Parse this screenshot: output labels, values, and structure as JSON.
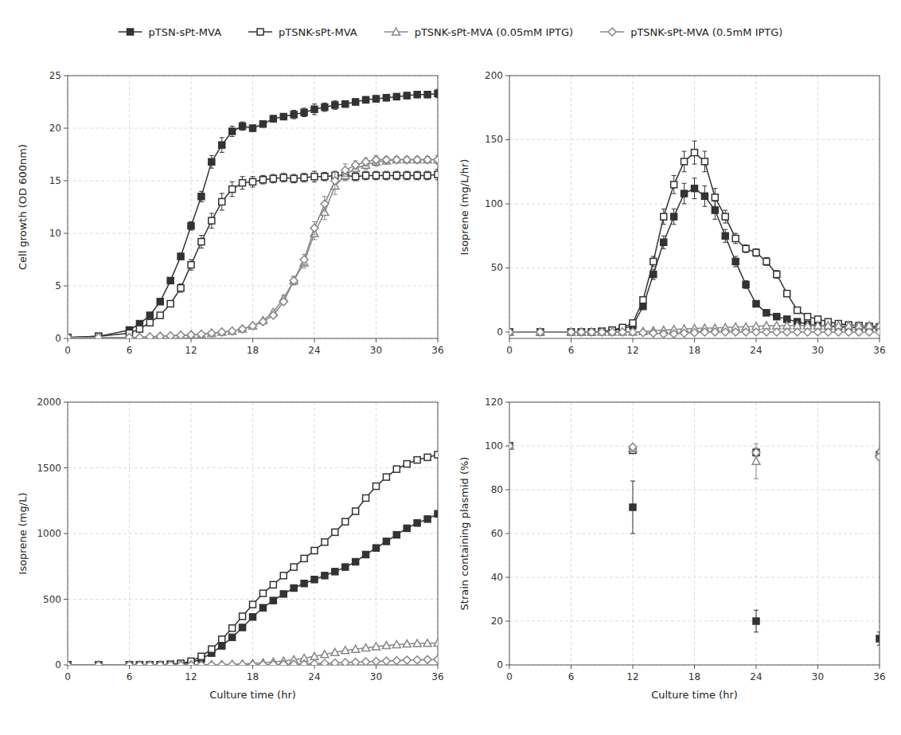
{
  "chart_data": [
    {
      "type": "line",
      "y_label": "Cell growth (OD 600nm)",
      "x": [
        0,
        3,
        6,
        7,
        8,
        9,
        10,
        11,
        12,
        13,
        14,
        15,
        16,
        17,
        18,
        19,
        20,
        21,
        22,
        23,
        24,
        25,
        26,
        27,
        28,
        29,
        30,
        31,
        32,
        33,
        34,
        35,
        36
      ],
      "xlim": [
        0,
        36
      ],
      "xticks": [
        0,
        6,
        12,
        18,
        24,
        30,
        36
      ],
      "ylim": [
        0,
        25
      ],
      "yticks": [
        0,
        5,
        10,
        15,
        20,
        25
      ],
      "grid": true,
      "legend": "top",
      "series": [
        {
          "name": "pTSN-sPt-MVA",
          "color": "#333333",
          "marker": "square",
          "values": [
            0.1,
            0.2,
            0.8,
            1.4,
            2.2,
            3.5,
            5.5,
            7.8,
            10.7,
            13.5,
            16.8,
            18.4,
            19.7,
            20.2,
            20.0,
            20.4,
            20.9,
            21.1,
            21.3,
            21.5,
            21.8,
            22.0,
            22.2,
            22.3,
            22.5,
            22.7,
            22.8,
            22.9,
            23.0,
            23.1,
            23.2,
            23.2,
            23.3
          ],
          "errors": [
            0.0,
            0.0,
            0.05,
            0.1,
            0.1,
            0.15,
            0.2,
            0.3,
            0.4,
            0.5,
            0.6,
            0.7,
            0.5,
            0.4,
            0.3,
            0.3,
            0.3,
            0.3,
            0.4,
            0.4,
            0.5,
            0.4,
            0.4,
            0.3,
            0.3,
            0.3,
            0.3,
            0.3,
            0.3,
            0.3,
            0.3,
            0.3,
            0.4
          ]
        },
        {
          "name": "pTSNK-sPt-MVA",
          "color": "#333333",
          "marker": "square-open",
          "values": [
            0.1,
            0.2,
            0.5,
            0.9,
            1.5,
            2.2,
            3.3,
            4.8,
            7.0,
            9.2,
            11.2,
            13.0,
            14.2,
            14.8,
            14.9,
            15.1,
            15.2,
            15.3,
            15.2,
            15.3,
            15.4,
            15.4,
            15.5,
            15.5,
            15.4,
            15.5,
            15.5,
            15.5,
            15.5,
            15.5,
            15.5,
            15.5,
            15.6
          ],
          "errors": [
            0.0,
            0.0,
            0.05,
            0.1,
            0.15,
            0.2,
            0.3,
            0.4,
            0.5,
            0.6,
            0.7,
            0.8,
            0.7,
            0.6,
            0.5,
            0.4,
            0.4,
            0.4,
            0.4,
            0.4,
            0.5,
            0.4,
            0.4,
            0.4,
            0.4,
            0.4,
            0.4,
            0.4,
            0.4,
            0.4,
            0.4,
            0.4,
            0.5
          ]
        },
        {
          "name": "pTSNK-sPt-MVA (0.05mM IPTG)",
          "color": "#888888",
          "marker": "triangle-open",
          "values": [
            0.1,
            0.1,
            0.1,
            0.1,
            0.15,
            0.2,
            0.25,
            0.3,
            0.35,
            0.4,
            0.5,
            0.6,
            0.7,
            0.9,
            1.2,
            1.7,
            2.5,
            3.8,
            5.5,
            7.2,
            10.0,
            12.0,
            14.5,
            15.5,
            16.2,
            16.5,
            16.8,
            16.9,
            17.0,
            17.0,
            17.0,
            17.0,
            17.0
          ],
          "errors": [
            0.0,
            0.0,
            0.0,
            0.0,
            0.0,
            0.0,
            0.0,
            0.0,
            0.0,
            0.0,
            0.0,
            0.0,
            0.0,
            0.0,
            0.1,
            0.1,
            0.2,
            0.3,
            0.4,
            0.5,
            0.6,
            0.7,
            0.8,
            0.5,
            0.4,
            0.4,
            0.4,
            0.3,
            0.3,
            0.3,
            0.3,
            0.3,
            0.4
          ]
        },
        {
          "name": "pTSNK-sPt-MVA (0.5mM IPTG)",
          "color": "#888888",
          "marker": "diamond-open",
          "values": [
            0.1,
            0.1,
            0.1,
            0.1,
            0.15,
            0.2,
            0.25,
            0.3,
            0.35,
            0.4,
            0.5,
            0.6,
            0.7,
            0.9,
            1.2,
            1.6,
            2.2,
            3.5,
            5.5,
            7.5,
            10.5,
            12.8,
            15.0,
            16.0,
            16.5,
            16.8,
            17.0,
            17.0,
            17.0,
            17.0,
            17.0,
            17.0,
            17.0
          ],
          "errors": [
            0.0,
            0.0,
            0.0,
            0.0,
            0.0,
            0.0,
            0.0,
            0.0,
            0.0,
            0.0,
            0.0,
            0.0,
            0.0,
            0.0,
            0.1,
            0.1,
            0.2,
            0.3,
            0.4,
            0.5,
            0.6,
            0.7,
            0.8,
            0.6,
            0.4,
            0.4,
            0.4,
            0.3,
            0.3,
            0.3,
            0.3,
            0.3,
            0.4
          ]
        }
      ]
    },
    {
      "type": "line",
      "y_label": "Isoprene (mg/L/hr)",
      "x": [
        0,
        3,
        6,
        7,
        8,
        9,
        10,
        11,
        12,
        13,
        14,
        15,
        16,
        17,
        18,
        19,
        20,
        21,
        22,
        23,
        24,
        25,
        26,
        27,
        28,
        29,
        30,
        31,
        32,
        33,
        34,
        35,
        36
      ],
      "xlim": [
        0,
        36
      ],
      "xticks": [
        0,
        6,
        12,
        18,
        24,
        30,
        36
      ],
      "ylim": [
        -5,
        200
      ],
      "yticks": [
        0,
        50,
        100,
        150,
        200
      ],
      "grid": true,
      "series": [
        {
          "color": "#333333",
          "marker": "square",
          "values": [
            0,
            0,
            0,
            0,
            0,
            0.5,
            1.0,
            2.5,
            5.0,
            20.0,
            45.0,
            70.0,
            90.0,
            108.0,
            112.0,
            106.0,
            95.0,
            75.0,
            55.0,
            37.0,
            22.0,
            15.0,
            12.0,
            10.0,
            8.0,
            6.0,
            5.0,
            4.5,
            4.0,
            3.5,
            3.5,
            3.0,
            3.0
          ],
          "errors": [
            0,
            0,
            0,
            0,
            0,
            0,
            0,
            0,
            0.5,
            2,
            4,
            5,
            6,
            8,
            8,
            8,
            7,
            5,
            4,
            3,
            2,
            1.5,
            1.5,
            1,
            1,
            1,
            1,
            1,
            1,
            1,
            1,
            1,
            1
          ]
        },
        {
          "color": "#333333",
          "marker": "square-open",
          "values": [
            0,
            0,
            0,
            0,
            0,
            0.5,
            1.5,
            3.5,
            7.0,
            25.0,
            55.0,
            90.0,
            115.0,
            133.0,
            140.0,
            133.0,
            105.0,
            90.0,
            73.0,
            65.0,
            62.0,
            55.0,
            45.0,
            30.0,
            17.0,
            12.0,
            10.0,
            8.0,
            6.5,
            5.5,
            5.0,
            4.5,
            4.0
          ],
          "errors": [
            0,
            0,
            0,
            0,
            0,
            0,
            0,
            0,
            0.5,
            2,
            4,
            6,
            7,
            8,
            9,
            8,
            7,
            5,
            4,
            3,
            3,
            3,
            3,
            2,
            2,
            1.5,
            1.5,
            1,
            1,
            1,
            1,
            1,
            1
          ]
        },
        {
          "color": "#888888",
          "marker": "triangle-open",
          "values": [
            0,
            0,
            0,
            0,
            0,
            0,
            0,
            0,
            0,
            0.5,
            1.0,
            1.5,
            2.0,
            2.5,
            2.8,
            3.0,
            3.0,
            3.5,
            4.0,
            4.0,
            4.5,
            5.0,
            5.0,
            5.0,
            5.0,
            5.0,
            5.0,
            5.0,
            5.0,
            5.0,
            5.0,
            5.0,
            5.0
          ],
          "errors": [
            0,
            0,
            0,
            0,
            0,
            0,
            0,
            0,
            0,
            0,
            0,
            0,
            0,
            0,
            0,
            0,
            0,
            0,
            0,
            0,
            0,
            0,
            0,
            0,
            0,
            0,
            0,
            0,
            0,
            0,
            0,
            0,
            0
          ]
        },
        {
          "color": "#888888",
          "marker": "diamond-open",
          "values": [
            0,
            0,
            0,
            0,
            0,
            0,
            0,
            0,
            0,
            -0.5,
            -1.0,
            -1.5,
            -1.5,
            -1.0,
            -0.5,
            0,
            0,
            0,
            0,
            0,
            0,
            0,
            0,
            0,
            0,
            0,
            0,
            0,
            0,
            0,
            0,
            0,
            0
          ],
          "errors": [
            0,
            0,
            0,
            0,
            0,
            0,
            0,
            0,
            0,
            0,
            0,
            0,
            0,
            0,
            0,
            0,
            0,
            0,
            0,
            0,
            0,
            0,
            0,
            0,
            0,
            0,
            0,
            0,
            0,
            0,
            0,
            0,
            0
          ]
        }
      ]
    },
    {
      "type": "line",
      "y_label": "Isoprene (mg/L)",
      "x_label": "Culture time (hr)",
      "x": [
        0,
        3,
        6,
        7,
        8,
        9,
        10,
        11,
        12,
        13,
        14,
        15,
        16,
        17,
        18,
        19,
        20,
        21,
        22,
        23,
        24,
        25,
        26,
        27,
        28,
        29,
        30,
        31,
        32,
        33,
        34,
        35,
        36
      ],
      "xlim": [
        0,
        36
      ],
      "xticks": [
        0,
        6,
        12,
        18,
        24,
        30,
        36
      ],
      "ylim": [
        0,
        2000
      ],
      "yticks": [
        0,
        500,
        1000,
        1500,
        2000
      ],
      "grid": true,
      "series": [
        {
          "color": "#333333",
          "marker": "square",
          "values": [
            0,
            0,
            0,
            0,
            0,
            1,
            3,
            8,
            18,
            45,
            90,
            145,
            210,
            285,
            365,
            435,
            490,
            540,
            585,
            620,
            650,
            680,
            710,
            745,
            785,
            840,
            890,
            940,
            990,
            1040,
            1080,
            1110,
            1150
          ]
        },
        {
          "color": "#333333",
          "marker": "square-open",
          "values": [
            0,
            0,
            0,
            0,
            0,
            1.5,
            5,
            12,
            28,
            65,
            120,
            195,
            280,
            370,
            460,
            545,
            610,
            680,
            745,
            810,
            870,
            935,
            1010,
            1090,
            1170,
            1270,
            1360,
            1430,
            1490,
            1530,
            1560,
            1580,
            1600
          ]
        },
        {
          "color": "#888888",
          "marker": "triangle-open",
          "values": [
            0,
            0,
            0,
            0,
            0,
            0,
            0,
            0,
            0,
            0.5,
            1,
            3,
            5,
            8,
            12,
            17,
            23,
            30,
            40,
            52,
            65,
            80,
            95,
            110,
            120,
            130,
            140,
            148,
            155,
            160,
            163,
            165,
            166
          ]
        },
        {
          "color": "#888888",
          "marker": "diamond-open",
          "values": [
            0,
            0,
            0,
            0,
            0,
            0,
            0,
            0,
            0,
            0,
            0,
            0.5,
            1,
            1.5,
            2,
            2.5,
            3,
            4,
            5,
            7,
            9,
            12,
            15,
            18,
            21,
            24,
            27,
            30,
            33,
            36,
            38,
            40,
            42
          ]
        }
      ]
    },
    {
      "type": "scatter",
      "y_label": "Strain containing plasmid (%)",
      "x_label": "Culture time (hr)",
      "x": [
        0,
        12,
        24,
        36
      ],
      "xlim": [
        0,
        36
      ],
      "xticks": [
        0,
        6,
        12,
        18,
        24,
        30,
        36
      ],
      "ylim": [
        0,
        120
      ],
      "yticks": [
        0,
        20,
        40,
        60,
        80,
        100,
        120
      ],
      "grid": true,
      "series": [
        {
          "color": "#333333",
          "marker": "square",
          "values": [
            100,
            72,
            20,
            12
          ],
          "errors": [
            0,
            12,
            5,
            3
          ]
        },
        {
          "color": "#333333",
          "marker": "square-open",
          "values": [
            100,
            98,
            97,
            96
          ],
          "errors": [
            0,
            1,
            1.5,
            1
          ]
        },
        {
          "color": "#888888",
          "marker": "triangle-open",
          "values": [
            100,
            99,
            93,
            97
          ],
          "errors": [
            0,
            1.5,
            8,
            1.5
          ]
        },
        {
          "color": "#888888",
          "marker": "diamond-open",
          "values": [
            100,
            99.5,
            97,
            95
          ],
          "errors": [
            0,
            1,
            2,
            1.5
          ]
        }
      ]
    }
  ]
}
